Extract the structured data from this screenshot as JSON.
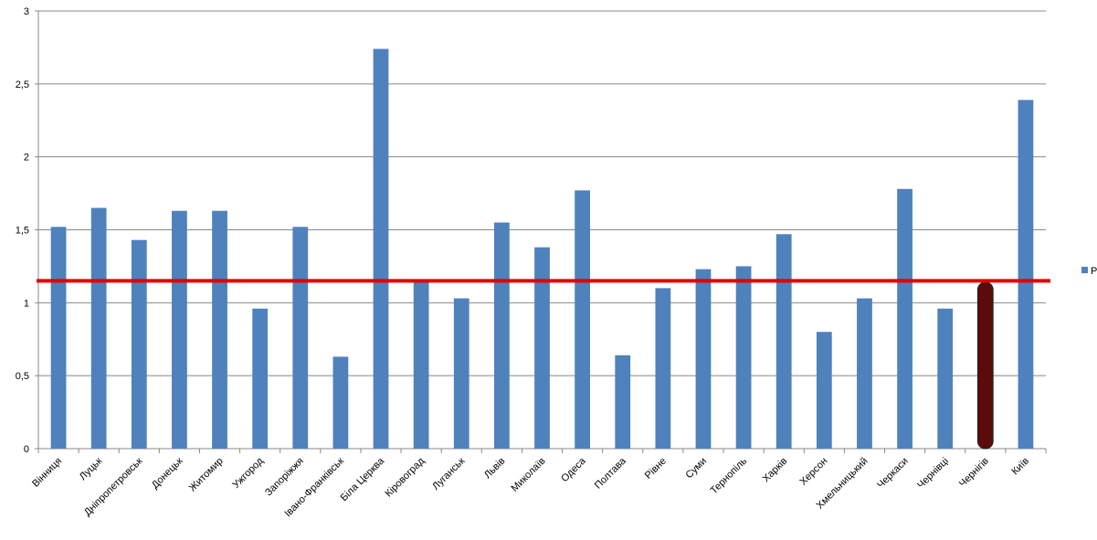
{
  "chart_data": {
    "type": "bar",
    "categories": [
      "Вінниця",
      "Луцьк",
      "Дніпропетровськ",
      "Донецьк",
      "Житомир",
      "Ужгород",
      "Запоріжжя",
      "Івано-Франківськ",
      "Біла Церква",
      "Кіровоград",
      "Луганськ",
      "Львів",
      "Миколаїв",
      "Одеса",
      "Полтава",
      "Рівне",
      "Суми",
      "Тернопіль",
      "Харків",
      "Херсон",
      "Хмельницький",
      "Черкаси",
      "Чернівці",
      "Чернігів",
      "Київ"
    ],
    "series": [
      {
        "name": "Р",
        "color": "#4f81bd",
        "values": [
          1.52,
          1.65,
          1.43,
          1.63,
          1.63,
          0.96,
          1.52,
          0.63,
          2.74,
          1.14,
          1.03,
          1.55,
          1.38,
          1.77,
          0.64,
          1.1,
          1.23,
          1.25,
          1.47,
          0.8,
          1.03,
          1.78,
          0.96,
          1.14,
          2.39
        ],
        "colors": [
          "#4f81bd",
          "#4f81bd",
          "#4f81bd",
          "#4f81bd",
          "#4f81bd",
          "#4f81bd",
          "#4f81bd",
          "#4f81bd",
          "#4f81bd",
          "#4f81bd",
          "#4f81bd",
          "#4f81bd",
          "#4f81bd",
          "#4f81bd",
          "#4f81bd",
          "#4f81bd",
          "#4f81bd",
          "#4f81bd",
          "#4f81bd",
          "#4f81bd",
          "#4f81bd",
          "#4f81bd",
          "#4f81bd",
          "#5c0a0a",
          "#4f81bd"
        ]
      }
    ],
    "reference_line": {
      "value": 1.15,
      "color": "#e00000"
    },
    "ylim": [
      0,
      3
    ],
    "yticks": [
      0,
      {
        "value": 0.5,
        "label": "0,5"
      },
      1,
      {
        "value": 1.5,
        "label": "1,5"
      },
      2,
      {
        "value": 2.5,
        "label": "2,5"
      },
      3
    ],
    "grid": true,
    "legend": "right"
  }
}
